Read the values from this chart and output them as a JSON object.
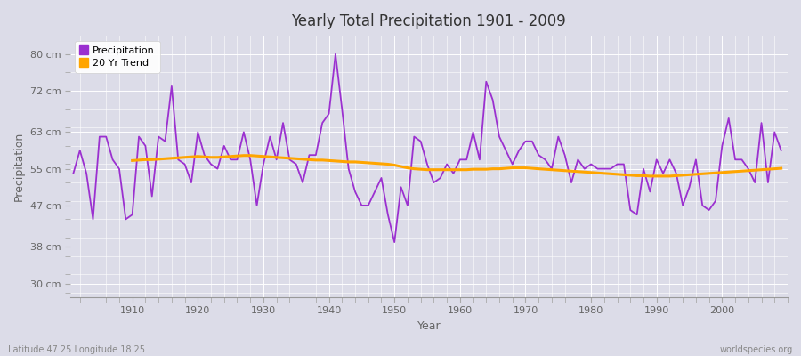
{
  "title": "Yearly Total Precipitation 1901 - 2009",
  "xlabel": "Year",
  "ylabel": "Precipitation",
  "bottom_left_label": "Latitude 47.25 Longitude 18.25",
  "bottom_right_label": "worldspecies.org",
  "precip_color": "#9B30D0",
  "trend_color": "#FFA500",
  "bg_color": "#DCDCE8",
  "plot_bg_color": "#DCDCE8",
  "grid_color": "#FFFFFF",
  "yticks": [
    30,
    38,
    47,
    55,
    63,
    72,
    80
  ],
  "ytick_labels": [
    "30 cm",
    "38 cm",
    "47 cm",
    "55 cm",
    "63 cm",
    "72 cm",
    "80 cm"
  ],
  "ylim": [
    27,
    84
  ],
  "xlim": [
    1900.5,
    2010
  ],
  "xticks": [
    1910,
    1920,
    1930,
    1940,
    1950,
    1960,
    1970,
    1980,
    1990,
    2000
  ],
  "years": [
    1901,
    1902,
    1903,
    1904,
    1905,
    1906,
    1907,
    1908,
    1909,
    1910,
    1911,
    1912,
    1913,
    1914,
    1915,
    1916,
    1917,
    1918,
    1919,
    1920,
    1921,
    1922,
    1923,
    1924,
    1925,
    1926,
    1927,
    1928,
    1929,
    1930,
    1931,
    1932,
    1933,
    1934,
    1935,
    1936,
    1937,
    1938,
    1939,
    1940,
    1941,
    1942,
    1943,
    1944,
    1945,
    1946,
    1947,
    1948,
    1949,
    1950,
    1951,
    1952,
    1953,
    1954,
    1955,
    1956,
    1957,
    1958,
    1959,
    1960,
    1961,
    1962,
    1963,
    1964,
    1965,
    1966,
    1967,
    1968,
    1969,
    1970,
    1971,
    1972,
    1973,
    1974,
    1975,
    1976,
    1977,
    1978,
    1979,
    1980,
    1981,
    1982,
    1983,
    1984,
    1985,
    1986,
    1987,
    1988,
    1989,
    1990,
    1991,
    1992,
    1993,
    1994,
    1995,
    1996,
    1997,
    1998,
    1999,
    2000,
    2001,
    2002,
    2003,
    2004,
    2005,
    2006,
    2007,
    2008,
    2009
  ],
  "precipitation": [
    54.0,
    59.0,
    54.0,
    44.0,
    62.0,
    62.0,
    57.0,
    55.0,
    44.0,
    45.0,
    62.0,
    60.0,
    49.0,
    62.0,
    61.0,
    73.0,
    57.0,
    56.0,
    52.0,
    63.0,
    58.0,
    56.0,
    55.0,
    60.0,
    57.0,
    57.0,
    63.0,
    57.0,
    47.0,
    56.0,
    62.0,
    57.0,
    65.0,
    57.0,
    56.0,
    52.0,
    58.0,
    58.0,
    65.0,
    67.0,
    80.0,
    68.0,
    55.0,
    50.0,
    47.0,
    47.0,
    50.0,
    53.0,
    45.0,
    39.0,
    51.0,
    47.0,
    62.0,
    61.0,
    56.0,
    52.0,
    53.0,
    56.0,
    54.0,
    57.0,
    57.0,
    63.0,
    57.0,
    74.0,
    70.0,
    62.0,
    59.0,
    56.0,
    59.0,
    61.0,
    61.0,
    58.0,
    57.0,
    55.0,
    62.0,
    58.0,
    52.0,
    57.0,
    55.0,
    56.0,
    55.0,
    55.0,
    55.0,
    56.0,
    56.0,
    46.0,
    45.0,
    55.0,
    50.0,
    57.0,
    54.0,
    57.0,
    54.0,
    47.0,
    51.0,
    57.0,
    47.0,
    46.0,
    48.0,
    60.0,
    66.0,
    57.0,
    57.0,
    55.0,
    52.0,
    65.0,
    52.0,
    63.0,
    59.0
  ],
  "trend": [
    null,
    null,
    null,
    null,
    null,
    null,
    null,
    null,
    null,
    56.8,
    56.9,
    57.0,
    57.0,
    57.1,
    57.2,
    57.3,
    57.4,
    57.5,
    57.6,
    57.7,
    57.6,
    57.5,
    57.5,
    57.6,
    57.7,
    57.8,
    57.9,
    57.9,
    57.8,
    57.7,
    57.6,
    57.5,
    57.4,
    57.3,
    57.2,
    57.1,
    57.0,
    56.9,
    56.9,
    56.8,
    56.7,
    56.6,
    56.5,
    56.5,
    56.4,
    56.3,
    56.2,
    56.1,
    56.0,
    55.8,
    55.5,
    55.2,
    55.0,
    54.9,
    54.8,
    54.8,
    54.8,
    54.8,
    54.8,
    54.8,
    54.8,
    54.9,
    54.9,
    54.9,
    55.0,
    55.0,
    55.1,
    55.2,
    55.2,
    55.2,
    55.1,
    55.0,
    54.9,
    54.8,
    54.7,
    54.6,
    54.5,
    54.4,
    54.3,
    54.2,
    54.1,
    54.0,
    53.9,
    53.8,
    53.7,
    53.6,
    53.5,
    53.5,
    53.4,
    53.4,
    53.4,
    53.4,
    53.5,
    53.6,
    53.7,
    53.8,
    53.9,
    54.0,
    54.1,
    54.2,
    54.3,
    54.4,
    54.5,
    54.6,
    54.7,
    54.8,
    54.9,
    55.0,
    55.1
  ]
}
